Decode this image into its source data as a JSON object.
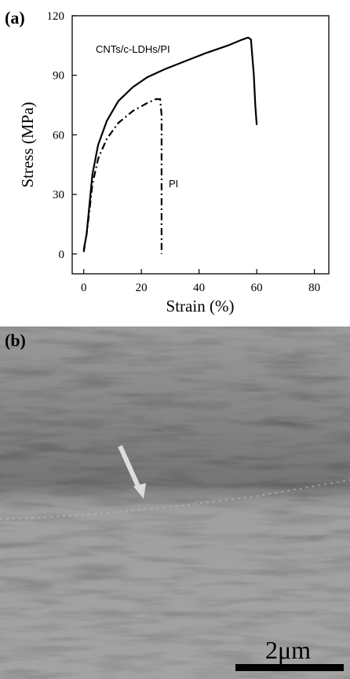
{
  "panel_labels": [
    "(a)",
    "(b)"
  ],
  "scale_bar": "2μm",
  "chart_data": {
    "type": "line",
    "xlabel": "Strain (%)",
    "ylabel": "Stress (MPa)",
    "xlim": [
      -4,
      85
    ],
    "ylim": [
      -10,
      120
    ],
    "xticks": [
      0,
      20,
      40,
      60,
      80
    ],
    "yticks": [
      0,
      30,
      60,
      90,
      120
    ],
    "series": [
      {
        "name": "CNTs/c-LDHs/PI",
        "color": "#000000",
        "style": "solid",
        "x": [
          0,
          1,
          2,
          3,
          5,
          8,
          12,
          17,
          22,
          28,
          35,
          42,
          50,
          55,
          57,
          58,
          59,
          59.5,
          60
        ],
        "values": [
          2,
          10,
          25,
          40,
          55,
          67,
          77,
          84,
          89,
          93,
          97,
          101,
          105,
          108,
          109,
          108,
          90,
          75,
          65
        ]
      },
      {
        "name": "PI",
        "color": "#000000",
        "style": "dashdot",
        "x": [
          0,
          1,
          2,
          3,
          5,
          8,
          12,
          17,
          22,
          25,
          26.5,
          27,
          27
        ],
        "values": [
          1,
          10,
          22,
          35,
          48,
          58,
          66,
          72,
          76,
          78,
          78,
          70,
          0
        ]
      }
    ]
  }
}
